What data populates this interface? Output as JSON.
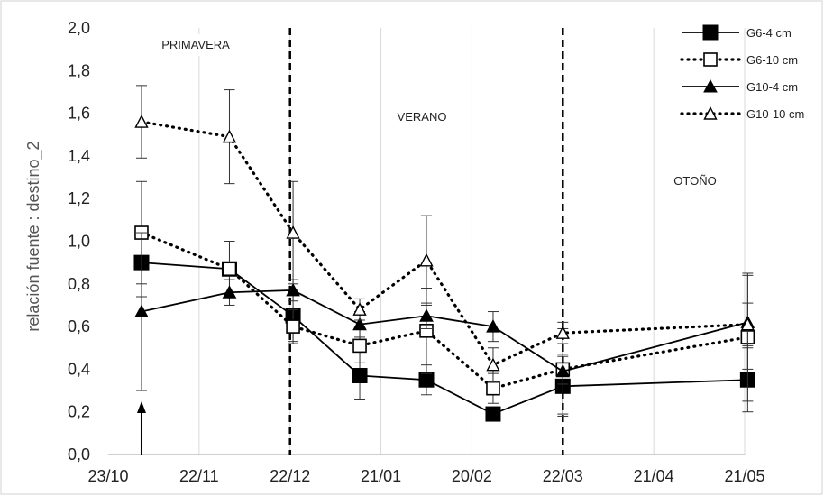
{
  "chart_data": {
    "type": "line",
    "ylabel": "relación fuente : destino_2",
    "ylim": [
      0.0,
      2.0
    ],
    "y_ticks": [
      "0,0",
      "0,2",
      "0,4",
      "0,6",
      "0,8",
      "1,0",
      "1,2",
      "1,4",
      "1,6",
      "1,8",
      "2,0"
    ],
    "x_ticks": [
      "23/10",
      "22/11",
      "22/12",
      "21/01",
      "20/02",
      "22/03",
      "21/04",
      "21/05"
    ],
    "x_tick_days": [
      0,
      30,
      60,
      90,
      120,
      150,
      180,
      210
    ],
    "season_dividers_days": [
      60,
      150
    ],
    "season_labels": [
      "PRIMAVERA",
      "VERANO",
      "OTOÑO"
    ],
    "arrow_day": 11,
    "grid": "vertical",
    "legend_position": "top-right",
    "series": [
      {
        "name": "G6-4 cm",
        "line": "solid",
        "marker": "filled-square",
        "x_days": [
          11,
          40,
          61,
          83,
          105,
          127,
          150,
          211
        ],
        "y": [
          0.9,
          0.87,
          0.65,
          0.37,
          0.35,
          0.19,
          0.32,
          0.35
        ],
        "err": [
          0.16,
          0.13,
          0.12,
          0.11,
          0.07,
          0.0,
          0.14,
          0.15
        ]
      },
      {
        "name": "G6-10 cm",
        "line": "dotted",
        "marker": "open-square",
        "x_days": [
          11,
          40,
          61,
          83,
          105,
          127,
          150,
          211
        ],
        "y": [
          1.04,
          0.87,
          0.6,
          0.51,
          0.58,
          0.31,
          0.4,
          0.55
        ],
        "err": [
          0.24,
          0.13,
          0.08,
          0.08,
          0.2,
          0.07,
          0.07,
          0.3
        ]
      },
      {
        "name": "G10-4 cm",
        "line": "solid",
        "marker": "filled-triangle",
        "x_days": [
          11,
          40,
          61,
          83,
          105,
          127,
          150,
          211
        ],
        "y": [
          0.67,
          0.76,
          0.77,
          0.61,
          0.65,
          0.6,
          0.39,
          0.62
        ],
        "err": [
          0.37,
          0.06,
          0.05,
          0.06,
          0.06,
          0.07,
          0.2,
          0.22
        ]
      },
      {
        "name": "G10-10 cm",
        "line": "dotted",
        "marker": "open-triangle",
        "x_days": [
          11,
          40,
          61,
          83,
          105,
          127,
          150,
          211
        ],
        "y": [
          1.56,
          1.49,
          1.04,
          0.68,
          0.91,
          0.42,
          0.57,
          0.61
        ],
        "err": [
          0.17,
          0.22,
          0.24,
          0.05,
          0.21,
          0.08,
          0.05,
          0.1
        ]
      }
    ]
  },
  "colors": {
    "series": "#000000",
    "grid": "#d9d9d9",
    "axis": "#bfbfbf",
    "background": "#ffffff"
  }
}
